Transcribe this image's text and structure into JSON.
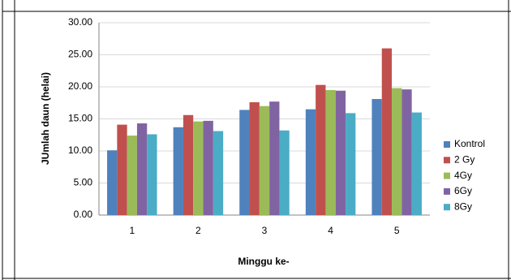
{
  "chart_data": {
    "type": "bar",
    "y_label": "JUmlah daun (helai)",
    "x_label": "Minggu ke-",
    "categories": [
      "1",
      "2",
      "3",
      "4",
      "5"
    ],
    "series": [
      {
        "name": "Kontrol",
        "color": "#4f81bd",
        "values": [
          10.1,
          13.7,
          16.4,
          16.5,
          18.1
        ]
      },
      {
        "name": "2 Gy",
        "color": "#c0504d",
        "values": [
          14.1,
          15.6,
          17.6,
          20.3,
          26.0
        ]
      },
      {
        "name": "4Gy",
        "color": "#9bbb59",
        "values": [
          12.4,
          14.6,
          17.0,
          19.5,
          19.8
        ]
      },
      {
        "name": "6Gy",
        "color": "#8064a2",
        "values": [
          14.3,
          14.7,
          17.7,
          19.4,
          19.6
        ]
      },
      {
        "name": "8Gy",
        "color": "#4bacc6",
        "values": [
          12.6,
          13.1,
          13.2,
          15.9,
          16.0
        ]
      }
    ],
    "ylim": [
      0,
      30
    ],
    "yticks": [
      {
        "value": 0,
        "label": "0.00"
      },
      {
        "value": 5,
        "label": "5.00"
      },
      {
        "value": 10,
        "label": "10.00"
      },
      {
        "value": 15,
        "label": "15.00"
      },
      {
        "value": 20,
        "label": "20.00"
      },
      {
        "value": 25,
        "label": "25.00"
      },
      {
        "value": 30,
        "label": "30.00"
      }
    ],
    "grid": true,
    "legend": "right"
  }
}
